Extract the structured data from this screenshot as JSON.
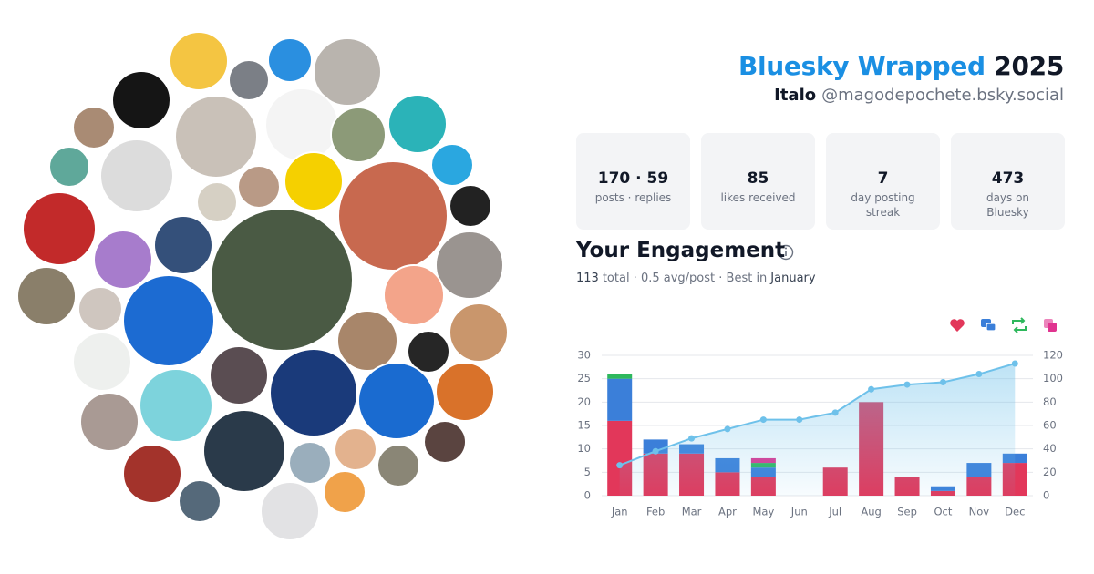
{
  "header": {
    "brand": "Bluesky Wrapped",
    "year": "2025",
    "name": "Italo",
    "handle": "@magodepochete.bsky.social"
  },
  "stats": [
    {
      "value": "170 · 59",
      "label": "posts · replies"
    },
    {
      "value": 85,
      "label": "likes received"
    },
    {
      "value": 7,
      "label": "day posting streak"
    },
    {
      "value": 473,
      "label": "days on Bluesky"
    }
  ],
  "engagement": {
    "title": "Your Engagement",
    "total": 113,
    "summary": "total · 0.5 avg/post · Best in",
    "best": "January"
  },
  "chart_data": {
    "type": "bar",
    "stacked": true,
    "categories": [
      "Jan",
      "Feb",
      "Mar",
      "Apr",
      "May",
      "Jun",
      "Jul",
      "Aug",
      "Sep",
      "Oct",
      "Nov",
      "Dec"
    ],
    "series": [
      {
        "color": "#e2375a",
        "values": [
          16,
          9,
          9,
          5,
          4,
          0,
          6,
          20,
          4,
          1,
          4,
          7
        ]
      },
      {
        "color": "#3b7fd9",
        "values": [
          9,
          3,
          2,
          3,
          2,
          0,
          0,
          0,
          0,
          1,
          3,
          2
        ]
      },
      {
        "color": "#2eb85c",
        "values": [
          1,
          0,
          0,
          0,
          1,
          0,
          0,
          0,
          0,
          0,
          0,
          0
        ]
      },
      {
        "color": "#e0338f",
        "values": [
          0,
          0,
          0,
          0,
          1,
          0,
          0,
          0,
          0,
          0,
          0,
          0
        ]
      },
      {
        "type": "line",
        "axis": "y2",
        "color": "#6ec1ea",
        "values": [
          26,
          38,
          49,
          57,
          65,
          65,
          71,
          91,
          95,
          97,
          104,
          113
        ]
      }
    ],
    "ylim": [
      0,
      30
    ],
    "yticks": [
      0,
      5,
      10,
      15,
      20,
      25,
      30
    ],
    "y2lim": [
      0,
      120
    ],
    "y2ticks": [
      0,
      20,
      40,
      60,
      80,
      100,
      120
    ],
    "grid": true,
    "legend": "top-right"
  }
}
